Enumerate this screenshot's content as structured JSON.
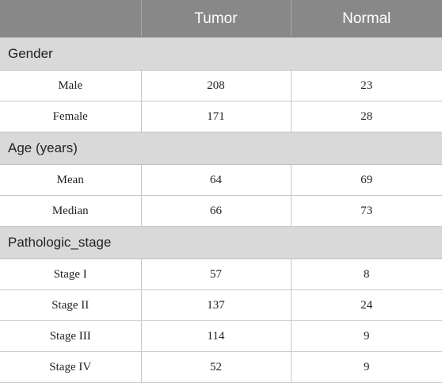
{
  "headers": [
    "",
    "Tumor",
    "Normal"
  ],
  "sections": [
    {
      "title": "Gender",
      "rows": [
        {
          "label": "Male",
          "tumor": "208",
          "normal": "23"
        },
        {
          "label": "Female",
          "tumor": "171",
          "normal": "28"
        }
      ]
    },
    {
      "title": "Age (years)",
      "rows": [
        {
          "label": "Mean",
          "tumor": "64",
          "normal": "69"
        },
        {
          "label": "Median",
          "tumor": "66",
          "normal": "73"
        }
      ]
    },
    {
      "title": "Pathologic_stage",
      "rows": [
        {
          "label": "Stage I",
          "tumor": "57",
          "normal": "8"
        },
        {
          "label": "Stage II",
          "tumor": "137",
          "normal": "24"
        },
        {
          "label": "Stage III",
          "tumor": "114",
          "normal": "9"
        },
        {
          "label": "Stage IV",
          "tumor": "52",
          "normal": "9"
        }
      ]
    }
  ]
}
